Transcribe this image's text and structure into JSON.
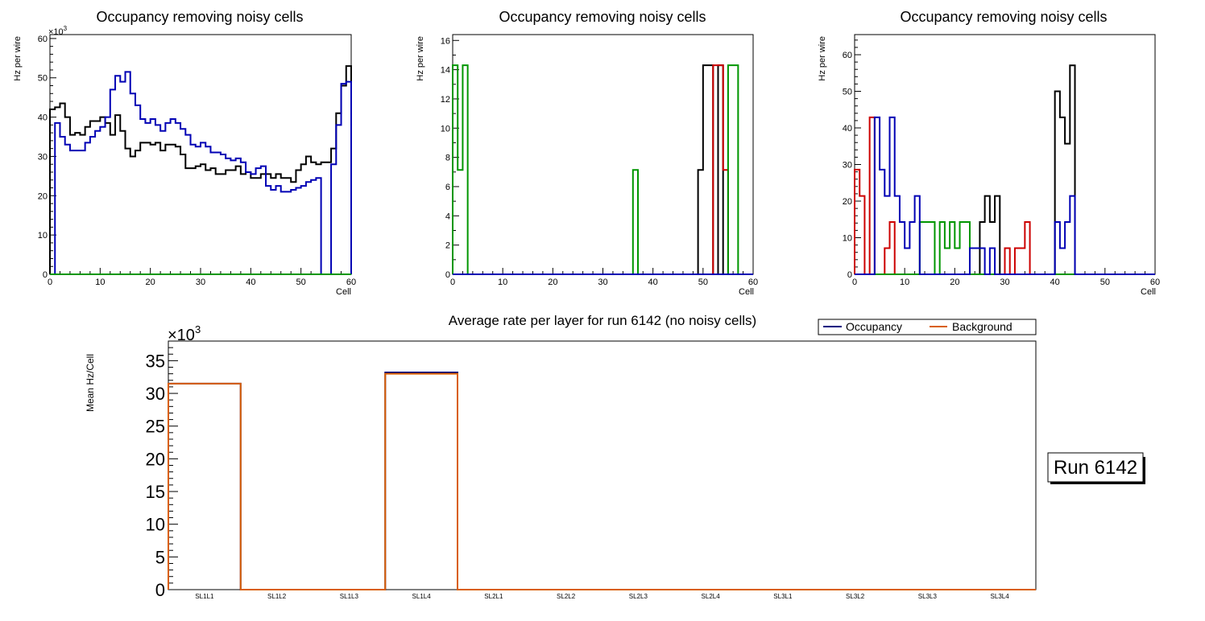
{
  "colors": {
    "black": "#000000",
    "blue": "#0000b4",
    "green": "#009600",
    "red": "#cc0000",
    "orange": "#d95f02",
    "occupancy": "#000080",
    "background": "#d95f02"
  },
  "run_label": "Run 6142",
  "chart_data": [
    {
      "type": "line",
      "step": true,
      "title": "Occupancy removing noisy cells",
      "xlabel": "Cell",
      "ylabel": "Hz per wire",
      "exponent_label": "×10",
      "exponent_power": "3",
      "xlim": [
        0,
        60
      ],
      "ylim": [
        0,
        61
      ],
      "xticks": [
        "0",
        "10",
        "20",
        "30",
        "40",
        "50",
        "60"
      ],
      "yticks": [
        "0",
        "10",
        "20",
        "30",
        "40",
        "50",
        "60"
      ],
      "series": [
        {
          "name": "black",
          "color": "#000000",
          "values": [
            42,
            42.5,
            43.5,
            40,
            35.5,
            36,
            35.5,
            37.5,
            39,
            39,
            40,
            38.5,
            35.5,
            40.5,
            36.5,
            32,
            30,
            31.5,
            33.5,
            33.5,
            33,
            33.5,
            31.5,
            33,
            33,
            32.5,
            30.5,
            27,
            27,
            27.5,
            28,
            26.5,
            27,
            25.5,
            25.5,
            26.5,
            26.5,
            27.5,
            25.5,
            26,
            24.5,
            24.5,
            25.5,
            25.5,
            24.5,
            25.5,
            24.5,
            24.5,
            23.5,
            26.5,
            28,
            30,
            28.5,
            28,
            28.5,
            28.5,
            32,
            41,
            48,
            53
          ]
        },
        {
          "name": "blue",
          "color": "#0000b4",
          "values": [
            0,
            38.5,
            35,
            33,
            31.5,
            31.5,
            31.5,
            33.5,
            35,
            36.5,
            37.5,
            40,
            47,
            50.5,
            49,
            51.5,
            46,
            43,
            39.5,
            38.5,
            39.5,
            38,
            36.5,
            38.5,
            39.5,
            38.5,
            37,
            35.5,
            33,
            32.5,
            33.5,
            32.5,
            31,
            31,
            30.5,
            29.5,
            29,
            29.5,
            28.5,
            26,
            25.5,
            27,
            27.5,
            22.5,
            21.5,
            22.5,
            21,
            21,
            21.5,
            22,
            22.5,
            23.5,
            24,
            24.5,
            0,
            0,
            28,
            38,
            48.5,
            49
          ]
        },
        {
          "name": "green",
          "color": "#009600",
          "values": [
            0,
            0,
            0,
            0,
            0,
            0,
            0,
            0,
            0,
            0,
            0,
            0,
            0,
            0,
            0,
            0,
            0,
            0,
            0,
            0,
            0,
            0,
            0,
            0,
            0,
            0,
            0,
            0,
            0,
            0,
            0,
            0,
            0,
            0,
            0,
            0,
            0,
            0,
            0,
            0,
            0,
            0,
            0,
            0,
            0,
            0,
            0,
            0,
            0,
            0,
            0,
            0,
            0,
            0,
            0,
            0,
            0,
            0,
            0,
            0
          ]
        }
      ]
    },
    {
      "type": "line",
      "step": true,
      "title": "Occupancy removing noisy cells",
      "xlabel": "Cell",
      "ylabel": "Hz per wire",
      "xlim": [
        0,
        60
      ],
      "ylim": [
        0,
        16.4
      ],
      "xticks": [
        "0",
        "10",
        "20",
        "30",
        "40",
        "50",
        "60"
      ],
      "yticks": [
        "0",
        "2",
        "4",
        "6",
        "8",
        "10",
        "12",
        "14",
        "16"
      ],
      "series": [
        {
          "name": "black",
          "color": "#000000",
          "values": [
            0,
            0,
            0,
            0,
            0,
            0,
            0,
            0,
            0,
            0,
            0,
            0,
            0,
            0,
            0,
            0,
            0,
            0,
            0,
            0,
            0,
            0,
            0,
            0,
            0,
            0,
            0,
            0,
            0,
            0,
            0,
            0,
            0,
            0,
            0,
            0,
            0,
            0,
            0,
            0,
            0,
            0,
            0,
            0,
            0,
            0,
            0,
            0,
            0,
            7.14,
            14.3,
            14.3,
            0,
            14.3,
            0,
            0,
            0,
            0,
            0,
            0
          ]
        },
        {
          "name": "red",
          "color": "#cc0000",
          "values": [
            0,
            0,
            0,
            0,
            0,
            0,
            0,
            0,
            0,
            0,
            0,
            0,
            0,
            0,
            0,
            0,
            0,
            0,
            0,
            0,
            0,
            0,
            0,
            0,
            0,
            0,
            0,
            0,
            0,
            0,
            0,
            0,
            0,
            0,
            0,
            0,
            0,
            0,
            0,
            0,
            0,
            0,
            0,
            0,
            0,
            0,
            0,
            0,
            0,
            0,
            0,
            0,
            14.3,
            14.3,
            7.14,
            0,
            0,
            0,
            0,
            0
          ]
        },
        {
          "name": "green",
          "color": "#009600",
          "values": [
            14.3,
            7.14,
            14.3,
            0,
            0,
            0,
            0,
            0,
            0,
            0,
            0,
            0,
            0,
            0,
            0,
            0,
            0,
            0,
            0,
            0,
            0,
            0,
            0,
            0,
            0,
            0,
            0,
            0,
            0,
            0,
            0,
            0,
            0,
            0,
            0,
            0,
            7.14,
            0,
            0,
            0,
            0,
            0,
            0,
            0,
            0,
            0,
            0,
            0,
            0,
            0,
            0,
            0,
            0,
            0,
            0,
            14.3,
            14.3,
            0,
            0,
            0
          ]
        },
        {
          "name": "blue",
          "color": "#0000b4",
          "values": [
            0,
            0,
            0,
            0,
            0,
            0,
            0,
            0,
            0,
            0,
            0,
            0,
            0,
            0,
            0,
            0,
            0,
            0,
            0,
            0,
            0,
            0,
            0,
            0,
            0,
            0,
            0,
            0,
            0,
            0,
            0,
            0,
            0,
            0,
            0,
            0,
            0,
            0,
            0,
            0,
            0,
            0,
            0,
            0,
            0,
            0,
            0,
            0,
            0,
            0,
            0,
            0,
            0,
            0,
            0,
            0,
            0,
            0,
            0,
            0
          ]
        }
      ]
    },
    {
      "type": "line",
      "step": true,
      "title": "Occupancy removing noisy cells",
      "xlabel": "Cell",
      "ylabel": "Hz per wire",
      "xlim": [
        0,
        60
      ],
      "ylim": [
        0,
        65.5
      ],
      "xticks": [
        "0",
        "10",
        "20",
        "30",
        "40",
        "50",
        "60"
      ],
      "yticks": [
        "0",
        "10",
        "20",
        "30",
        "40",
        "50",
        "60"
      ],
      "series": [
        {
          "name": "black",
          "color": "#000000",
          "values": [
            0,
            0,
            0,
            0,
            0,
            0,
            0,
            0,
            0,
            0,
            0,
            0,
            0,
            0,
            0,
            0,
            0,
            0,
            0,
            0,
            0,
            0,
            0,
            0,
            0,
            14.3,
            21.4,
            14.3,
            21.4,
            0,
            0,
            0,
            0,
            0,
            0,
            0,
            0,
            0,
            0,
            0,
            50,
            42.9,
            35.7,
            57.1,
            0,
            0,
            0,
            0,
            0,
            0,
            0,
            0,
            0,
            0,
            0,
            0,
            0,
            0,
            0,
            0
          ]
        },
        {
          "name": "red",
          "color": "#cc0000",
          "values": [
            28.6,
            21.4,
            0,
            42.9,
            0,
            0,
            7.14,
            14.3,
            0,
            0,
            0,
            0,
            0,
            0,
            0,
            0,
            0,
            0,
            0,
            0,
            0,
            0,
            0,
            0,
            0,
            0,
            0,
            0,
            0,
            0,
            7.14,
            0,
            7.14,
            7.14,
            14.3,
            0,
            0,
            0,
            0,
            0,
            0,
            0,
            0,
            0,
            0,
            0,
            0,
            0,
            0,
            0,
            0,
            0,
            0,
            0,
            0,
            0,
            0,
            0,
            0,
            0
          ]
        },
        {
          "name": "green",
          "color": "#009600",
          "values": [
            0,
            0,
            0,
            0,
            0,
            0,
            0,
            0,
            0,
            0,
            0,
            0,
            0,
            14.3,
            14.3,
            14.3,
            0,
            14.3,
            7.14,
            14.3,
            7.14,
            14.3,
            14.3,
            0,
            0,
            0,
            0,
            0,
            0,
            0,
            0,
            0,
            0,
            0,
            0,
            0,
            0,
            0,
            0,
            0,
            0,
            0,
            0,
            0,
            0,
            0,
            0,
            0,
            0,
            0,
            0,
            0,
            0,
            0,
            0,
            0,
            0,
            0,
            0,
            0
          ]
        },
        {
          "name": "blue",
          "color": "#0000b4",
          "values": [
            0,
            0,
            0,
            0,
            42.9,
            28.6,
            21.4,
            42.9,
            21.4,
            14.3,
            7.14,
            14.3,
            21.4,
            0,
            0,
            0,
            0,
            0,
            0,
            0,
            0,
            0,
            0,
            7.14,
            7.14,
            7.14,
            0,
            7.14,
            0,
            0,
            0,
            0,
            0,
            0,
            0,
            0,
            0,
            0,
            0,
            0,
            14.3,
            7.14,
            14.3,
            21.4,
            0,
            0,
            0,
            0,
            0,
            0,
            0,
            0,
            0,
            0,
            0,
            0,
            0,
            0,
            0,
            0
          ]
        }
      ]
    },
    {
      "type": "bar",
      "step": true,
      "title": "Average rate per layer for run 6142 (no noisy cells)",
      "xlabel": "",
      "ylabel": "Mean Hz/Cell",
      "exponent_label": "×10",
      "exponent_power": "3",
      "categories": [
        "SL1L1",
        "SL1L2",
        "SL1L3",
        "SL1L4",
        "SL2L1",
        "SL2L2",
        "SL2L3",
        "SL2L4",
        "SL3L1",
        "SL3L2",
        "SL3L3",
        "SL3L4"
      ],
      "ylim": [
        0,
        38
      ],
      "yticks": [
        "0",
        "5",
        "10",
        "15",
        "20",
        "25",
        "30",
        "35"
      ],
      "legend": [
        "Occupancy",
        "Background"
      ],
      "legend_position": "top-right",
      "series": [
        {
          "name": "Occupancy",
          "color": "#000080",
          "values": [
            31.5,
            0,
            0,
            33.2,
            0,
            0,
            0,
            0,
            0,
            0,
            0,
            0
          ]
        },
        {
          "name": "Background",
          "color": "#d95f02",
          "values": [
            31.5,
            0,
            0,
            33.0,
            0,
            0,
            0,
            0,
            0,
            0,
            0,
            0
          ]
        }
      ]
    }
  ]
}
